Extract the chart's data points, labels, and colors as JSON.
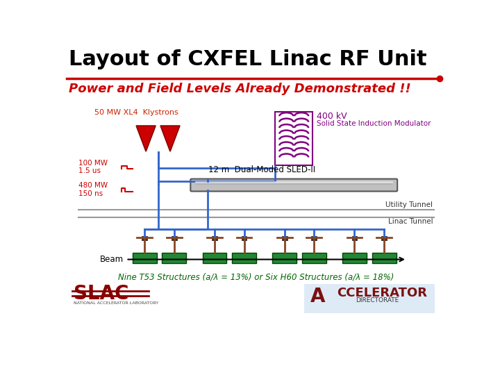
{
  "title": "Layout of CXFEL Linac RF Unit",
  "subtitle": "Power and Field Levels Already Demonstrated !!",
  "title_color": "#000000",
  "subtitle_color": "#cc0000",
  "bg_color": "#ffffff",
  "klystron_label": "50 MW XL4  Klystrons",
  "klystron_label_color": "#cc2200",
  "modulator_label1": "400 kV",
  "modulator_label2": "Solid State Induction Modulator",
  "modulator_color": "#800080",
  "sled_label": "12 m  Dual-Moded SLED-II",
  "label_100mw": "100 MW\n1.5 us",
  "label_480mw": "480 MW\n150 ns",
  "utility_tunnel": "Utility Tunnel",
  "linac_tunnel": "Linac Tunnel",
  "beam_label": "Beam",
  "bottom_label": "Nine T53 Structures (a/λ = 13%) or Six H60 Structures (a/λ = 18%)",
  "bottom_label_color": "#006600",
  "klystron_color": "#cc0000",
  "waveguide_color": "#3366cc",
  "sled_color": "#888888",
  "structure_color": "#228833",
  "beam_arrow_color": "#000000",
  "tunnel_line_color": "#999999",
  "feed_color": "#884422"
}
